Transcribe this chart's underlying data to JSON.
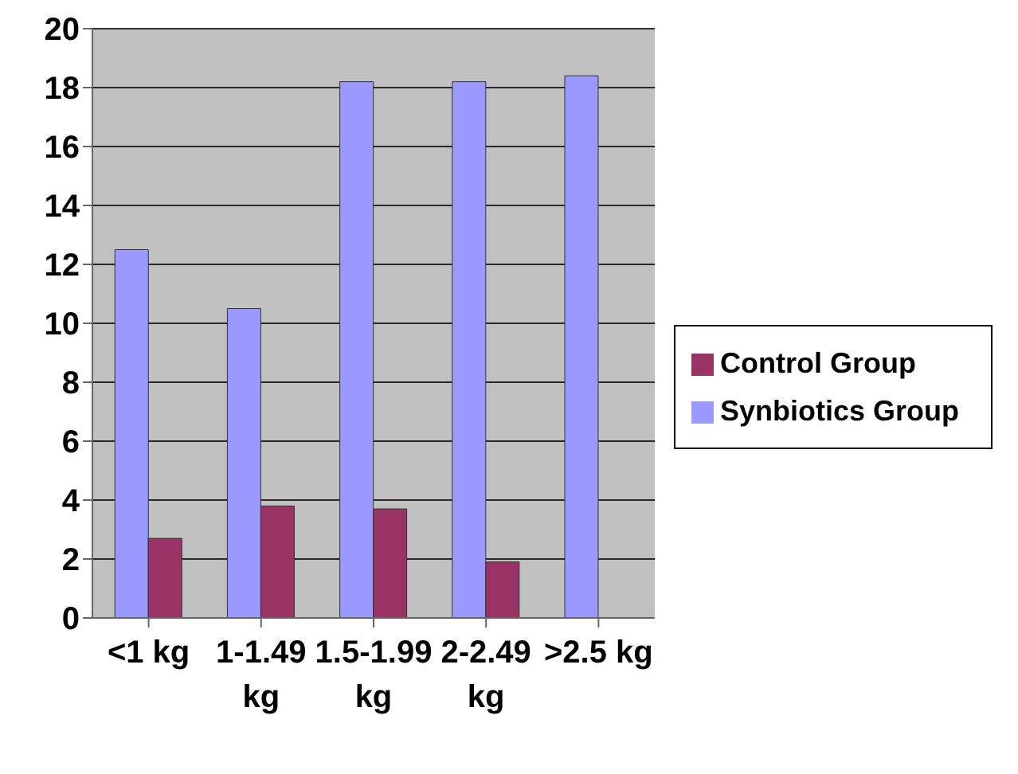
{
  "chart_data": {
    "type": "bar",
    "categories": [
      "<1 kg",
      "1-1.49 kg",
      "1.5-1.99 kg",
      "2-2.49 kg",
      ">2.5 kg"
    ],
    "series": [
      {
        "name": "Synbiotics Group",
        "color": "#9999ff",
        "values": [
          12.5,
          10.5,
          18.2,
          18.2,
          18.4
        ]
      },
      {
        "name": "Control Group",
        "color": "#993366",
        "values": [
          2.7,
          3.8,
          3.7,
          1.9,
          0
        ]
      }
    ],
    "ylim": [
      0,
      20
    ],
    "yticks": [
      0,
      2,
      4,
      6,
      8,
      10,
      12,
      14,
      16,
      18,
      20
    ],
    "grid": "y",
    "legend": "right"
  }
}
